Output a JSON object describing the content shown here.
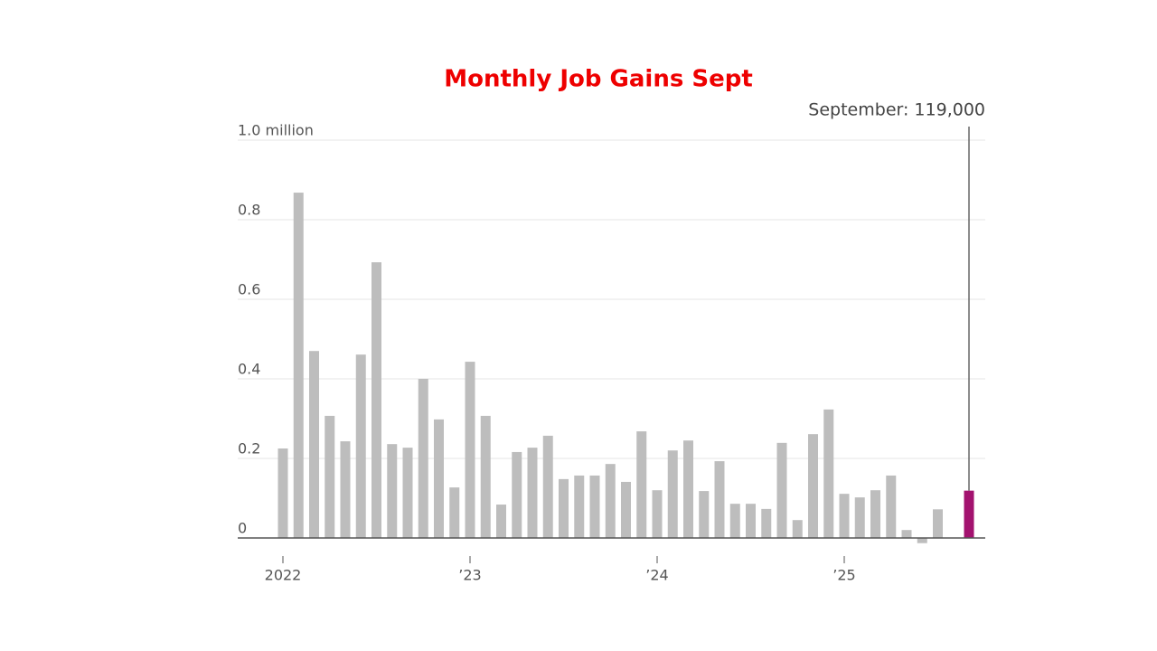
{
  "chart_data": {
    "type": "bar",
    "title": "Monthly Job Gains Sept",
    "annotation": "September: 119,000",
    "categories": [
      "2022",
      null,
      null,
      null,
      null,
      null,
      null,
      null,
      null,
      null,
      null,
      null,
      "’23",
      null,
      null,
      null,
      null,
      null,
      null,
      null,
      null,
      null,
      null,
      null,
      "’24",
      null,
      null,
      null,
      null,
      null,
      null,
      null,
      null,
      null,
      null,
      null,
      "’25",
      null,
      null,
      null,
      null,
      null,
      null,
      null,
      null
    ],
    "values": [
      0.225,
      0.868,
      0.47,
      0.307,
      0.243,
      0.461,
      0.693,
      0.236,
      0.227,
      0.4,
      0.298,
      0.127,
      0.443,
      0.307,
      0.084,
      0.216,
      0.227,
      0.257,
      0.148,
      0.157,
      0.157,
      0.186,
      0.141,
      0.268,
      0.12,
      0.22,
      0.245,
      0.118,
      0.193,
      0.086,
      0.086,
      0.073,
      0.239,
      0.045,
      0.261,
      0.323,
      0.111,
      0.102,
      0.12,
      0.157,
      0.02,
      -0.013,
      0.072,
      0,
      0.119
    ],
    "colors": [
      "#bdbdbd",
      "#bdbdbd",
      "#bdbdbd",
      "#bdbdbd",
      "#bdbdbd",
      "#bdbdbd",
      "#bdbdbd",
      "#bdbdbd",
      "#bdbdbd",
      "#bdbdbd",
      "#bdbdbd",
      "#bdbdbd",
      "#bdbdbd",
      "#bdbdbd",
      "#bdbdbd",
      "#bdbdbd",
      "#bdbdbd",
      "#bdbdbd",
      "#bdbdbd",
      "#bdbdbd",
      "#bdbdbd",
      "#bdbdbd",
      "#bdbdbd",
      "#bdbdbd",
      "#bdbdbd",
      "#bdbdbd",
      "#bdbdbd",
      "#bdbdbd",
      "#bdbdbd",
      "#bdbdbd",
      "#bdbdbd",
      "#bdbdbd",
      "#bdbdbd",
      "#bdbdbd",
      "#bdbdbd",
      "#bdbdbd",
      "#bdbdbd",
      "#bdbdbd",
      "#bdbdbd",
      "#bdbdbd",
      "#bdbdbd",
      "#bdbdbd",
      "#bdbdbd",
      "#bdbdbd",
      "#a3126f"
    ],
    "ylim": [
      0,
      1
    ],
    "yticks": [
      0,
      0.2,
      0.4,
      0.6,
      0.8,
      {
        "value": 1,
        "label": "1.0 million"
      }
    ],
    "grid": true
  }
}
